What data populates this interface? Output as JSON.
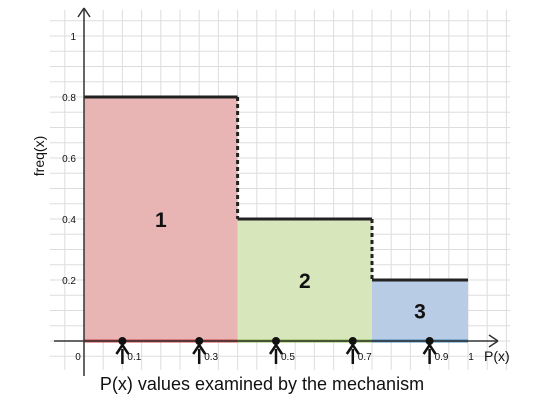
{
  "chart_data": {
    "type": "step",
    "xlabel": "P(x)",
    "ylabel": "freq(x)",
    "caption": "P(x) values examined by the mechanism",
    "xlim": [
      0,
      1
    ],
    "ylim": [
      0,
      1
    ],
    "y_ticks": [
      "0.2",
      "0.4",
      "0.6",
      "0.8",
      "1"
    ],
    "x_origin_label": "0",
    "x_end_label": "1",
    "grid": true,
    "steps": [
      {
        "label": "1",
        "x_start": 0,
        "x_end": 0.4,
        "value": 0.8,
        "fill": "#e8b4b4",
        "baseline": "#cc4444"
      },
      {
        "label": "2",
        "x_start": 0.4,
        "x_end": 0.75,
        "value": 0.4,
        "fill": "#d8e6bc",
        "baseline": "#88bb44"
      },
      {
        "label": "3",
        "x_start": 0.75,
        "x_end": 1,
        "value": 0.2,
        "fill": "#b8cce6",
        "baseline": "#4488bb"
      }
    ],
    "sample_points": [
      {
        "x": 0.1,
        "label": "0.1"
      },
      {
        "x": 0.3,
        "label": "0.3"
      },
      {
        "x": 0.5,
        "label": "0.5"
      },
      {
        "x": 0.7,
        "label": "0.7"
      },
      {
        "x": 0.9,
        "label": "0.9"
      }
    ]
  }
}
